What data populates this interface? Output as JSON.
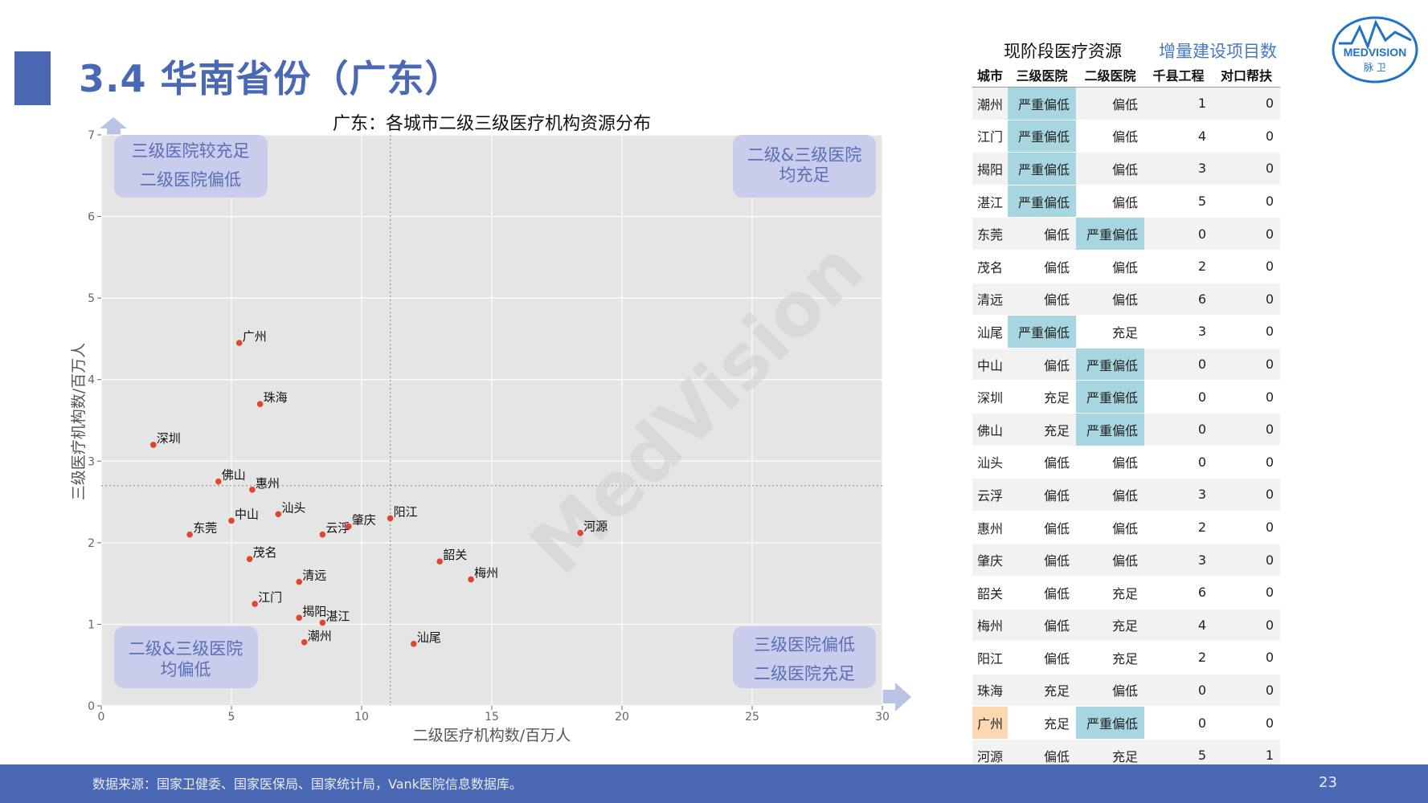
{
  "page": {
    "title": "3.4 华南省份（广东）",
    "page_number": "23",
    "footer": "数据来源：国家卫健委、国家医保局、国家统计局，Vank医院信息数据库。",
    "watermark": "MedVision",
    "logo": {
      "text1": "MEDVISION",
      "text2": "脉 卫",
      "color": "#1f73c4"
    }
  },
  "quadrants": {
    "top_left": [
      "三级医院较充足",
      "二级医院偏低"
    ],
    "top_right": [
      "二级&三级医院",
      "均充足"
    ],
    "bottom_left": [
      "二级&三级医院",
      "均偏低"
    ],
    "bottom_right": [
      "三级医院偏低",
      "二级医院充足"
    ]
  },
  "chart_data": {
    "type": "scatter",
    "title": "广东：各城市二级三级医疗机构资源分布",
    "xlabel": "二级医疗机构数/百万人",
    "ylabel": "三级医疗机构数/百万人",
    "xlim": [
      0,
      30
    ],
    "ylim": [
      0,
      7
    ],
    "xticks": [
      0,
      5,
      10,
      15,
      20,
      25,
      30
    ],
    "yticks": [
      0,
      1,
      2,
      3,
      4,
      5,
      6,
      7
    ],
    "ref_lines": {
      "x": 11.1,
      "y": 2.7
    },
    "grid": true,
    "point_color": "#e0452e",
    "points": [
      {
        "label": "广州",
        "x": 5.3,
        "y": 4.45
      },
      {
        "label": "珠海",
        "x": 6.1,
        "y": 3.7
      },
      {
        "label": "深圳",
        "x": 2.0,
        "y": 3.2
      },
      {
        "label": "佛山",
        "x": 4.5,
        "y": 2.75
      },
      {
        "label": "惠州",
        "x": 5.8,
        "y": 2.65
      },
      {
        "label": "汕头",
        "x": 6.8,
        "y": 2.35
      },
      {
        "label": "中山",
        "x": 5.0,
        "y": 2.27
      },
      {
        "label": "东莞",
        "x": 3.4,
        "y": 2.1
      },
      {
        "label": "云浮",
        "x": 8.5,
        "y": 2.1
      },
      {
        "label": "肇庆",
        "x": 9.5,
        "y": 2.2
      },
      {
        "label": "阳江",
        "x": 11.1,
        "y": 2.3
      },
      {
        "label": "河源",
        "x": 18.4,
        "y": 2.12
      },
      {
        "label": "茂名",
        "x": 5.7,
        "y": 1.8
      },
      {
        "label": "韶关",
        "x": 13.0,
        "y": 1.77
      },
      {
        "label": "梅州",
        "x": 14.2,
        "y": 1.55
      },
      {
        "label": "清远",
        "x": 7.6,
        "y": 1.52
      },
      {
        "label": "江门",
        "x": 5.9,
        "y": 1.25
      },
      {
        "label": "揭阳",
        "x": 7.6,
        "y": 1.08
      },
      {
        "label": "湛江",
        "x": 8.5,
        "y": 1.02
      },
      {
        "label": "潮州",
        "x": 7.8,
        "y": 0.78
      },
      {
        "label": "汕尾",
        "x": 12.0,
        "y": 0.76
      }
    ]
  },
  "table": {
    "header_left": "现阶段医疗资源",
    "header_right": "增量建设项目数",
    "columns": [
      "城市",
      "三级医院",
      "二级医院",
      "千县工程",
      "对口帮扶"
    ],
    "rows": [
      {
        "city": "潮州",
        "c3": "严重偏低",
        "c2": "偏低",
        "n1": "1",
        "n2": "0",
        "hl3": true
      },
      {
        "city": "江门",
        "c3": "严重偏低",
        "c2": "偏低",
        "n1": "4",
        "n2": "0",
        "hl3": true
      },
      {
        "city": "揭阳",
        "c3": "严重偏低",
        "c2": "偏低",
        "n1": "3",
        "n2": "0",
        "hl3": true
      },
      {
        "city": "湛江",
        "c3": "严重偏低",
        "c2": "偏低",
        "n1": "5",
        "n2": "0",
        "hl3": true
      },
      {
        "city": "东莞",
        "c3": "偏低",
        "c2": "严重偏低",
        "n1": "0",
        "n2": "0",
        "hl2": true
      },
      {
        "city": "茂名",
        "c3": "偏低",
        "c2": "偏低",
        "n1": "2",
        "n2": "0"
      },
      {
        "city": "清远",
        "c3": "偏低",
        "c2": "偏低",
        "n1": "6",
        "n2": "0"
      },
      {
        "city": "汕尾",
        "c3": "严重偏低",
        "c2": "充足",
        "n1": "3",
        "n2": "0",
        "hl3": true
      },
      {
        "city": "中山",
        "c3": "偏低",
        "c2": "严重偏低",
        "n1": "0",
        "n2": "0",
        "hl2": true
      },
      {
        "city": "深圳",
        "c3": "充足",
        "c2": "严重偏低",
        "n1": "0",
        "n2": "0",
        "hl2": true
      },
      {
        "city": "佛山",
        "c3": "充足",
        "c2": "严重偏低",
        "n1": "0",
        "n2": "0",
        "hl2": true
      },
      {
        "city": "汕头",
        "c3": "偏低",
        "c2": "偏低",
        "n1": "0",
        "n2": "0"
      },
      {
        "city": "云浮",
        "c3": "偏低",
        "c2": "偏低",
        "n1": "3",
        "n2": "0"
      },
      {
        "city": "惠州",
        "c3": "偏低",
        "c2": "偏低",
        "n1": "2",
        "n2": "0"
      },
      {
        "city": "肇庆",
        "c3": "偏低",
        "c2": "偏低",
        "n1": "3",
        "n2": "0"
      },
      {
        "city": "韶关",
        "c3": "偏低",
        "c2": "充足",
        "n1": "6",
        "n2": "0"
      },
      {
        "city": "梅州",
        "c3": "偏低",
        "c2": "充足",
        "n1": "4",
        "n2": "0"
      },
      {
        "city": "阳江",
        "c3": "偏低",
        "c2": "充足",
        "n1": "2",
        "n2": "0"
      },
      {
        "city": "珠海",
        "c3": "充足",
        "c2": "偏低",
        "n1": "0",
        "n2": "0"
      },
      {
        "city": "广州",
        "c3": "充足",
        "c2": "严重偏低",
        "n1": "0",
        "n2": "0",
        "hl2": true,
        "hlcity": true
      },
      {
        "city": "河源",
        "c3": "偏低",
        "c2": "充足",
        "n1": "5",
        "n2": "1"
      }
    ]
  }
}
